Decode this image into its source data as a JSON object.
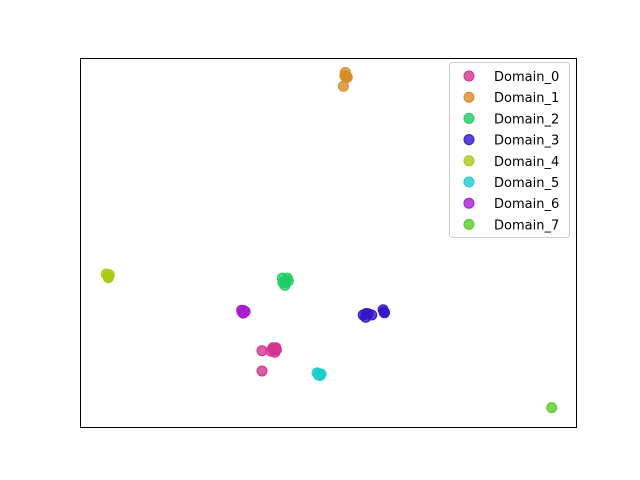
{
  "chart_data": {
    "type": "scatter",
    "title": "",
    "xlabel": "",
    "ylabel": "",
    "xlim": [
      0,
      100
    ],
    "ylim": [
      0,
      100
    ],
    "axes_ticks": false,
    "grid": false,
    "legend": {
      "placement": "top-right"
    },
    "series": [
      {
        "name": "Domain_0",
        "color": "#d6338f",
        "points": [
          [
            36.6,
            20.8
          ],
          [
            38.8,
            21.6
          ],
          [
            39.0,
            21.0
          ],
          [
            39.4,
            21.6
          ],
          [
            38.9,
            21.2
          ],
          [
            38.4,
            20.7
          ],
          [
            39.2,
            20.4
          ],
          [
            36.6,
            15.3
          ],
          [
            39.5,
            21.1
          ]
        ]
      },
      {
        "name": "Domain_1",
        "color": "#d98c26",
        "points": [
          [
            53.3,
            95.3
          ],
          [
            53.8,
            94.9
          ],
          [
            53.4,
            96.2
          ],
          [
            53.0,
            92.5
          ],
          [
            53.6,
            95.1
          ]
        ]
      },
      {
        "name": "Domain_2",
        "color": "#1fcc64",
        "points": [
          [
            40.8,
            39.3
          ],
          [
            41.4,
            39.8
          ],
          [
            41.2,
            38.5
          ],
          [
            41.9,
            39.7
          ],
          [
            40.7,
            40.5
          ],
          [
            41.7,
            40.5
          ],
          [
            41.2,
            39.3
          ]
        ]
      },
      {
        "name": "Domain_3",
        "color": "#3316cc",
        "points": [
          [
            57.0,
            30.5
          ],
          [
            58.0,
            30.8
          ],
          [
            57.5,
            29.9
          ],
          [
            57.6,
            30.9
          ],
          [
            61.2,
            31.3
          ],
          [
            61.0,
            31.9
          ],
          [
            61.3,
            31.1
          ],
          [
            58.7,
            30.5
          ]
        ]
      },
      {
        "name": "Domain_4",
        "color": "#a7cc14",
        "points": [
          [
            5.5,
            40.9
          ],
          [
            5.8,
            41.4
          ],
          [
            5.2,
            41.6
          ],
          [
            5.6,
            41.0
          ],
          [
            5.6,
            40.6
          ]
        ]
      },
      {
        "name": "Domain_5",
        "color": "#1ccece",
        "points": [
          [
            48.0,
            14.2
          ],
          [
            48.5,
            14.5
          ],
          [
            47.7,
            14.8
          ],
          [
            48.3,
            14.1
          ],
          [
            48.1,
            14.6
          ]
        ]
      },
      {
        "name": "Domain_6",
        "color": "#a81ccf",
        "points": [
          [
            32.6,
            31.3
          ],
          [
            32.9,
            31.7
          ],
          [
            33.2,
            31.4
          ],
          [
            32.8,
            31.0
          ],
          [
            32.5,
            31.8
          ]
        ]
      },
      {
        "name": "Domain_7",
        "color": "#56cc26",
        "points": [
          [
            95.0,
            5.4
          ]
        ]
      }
    ]
  }
}
